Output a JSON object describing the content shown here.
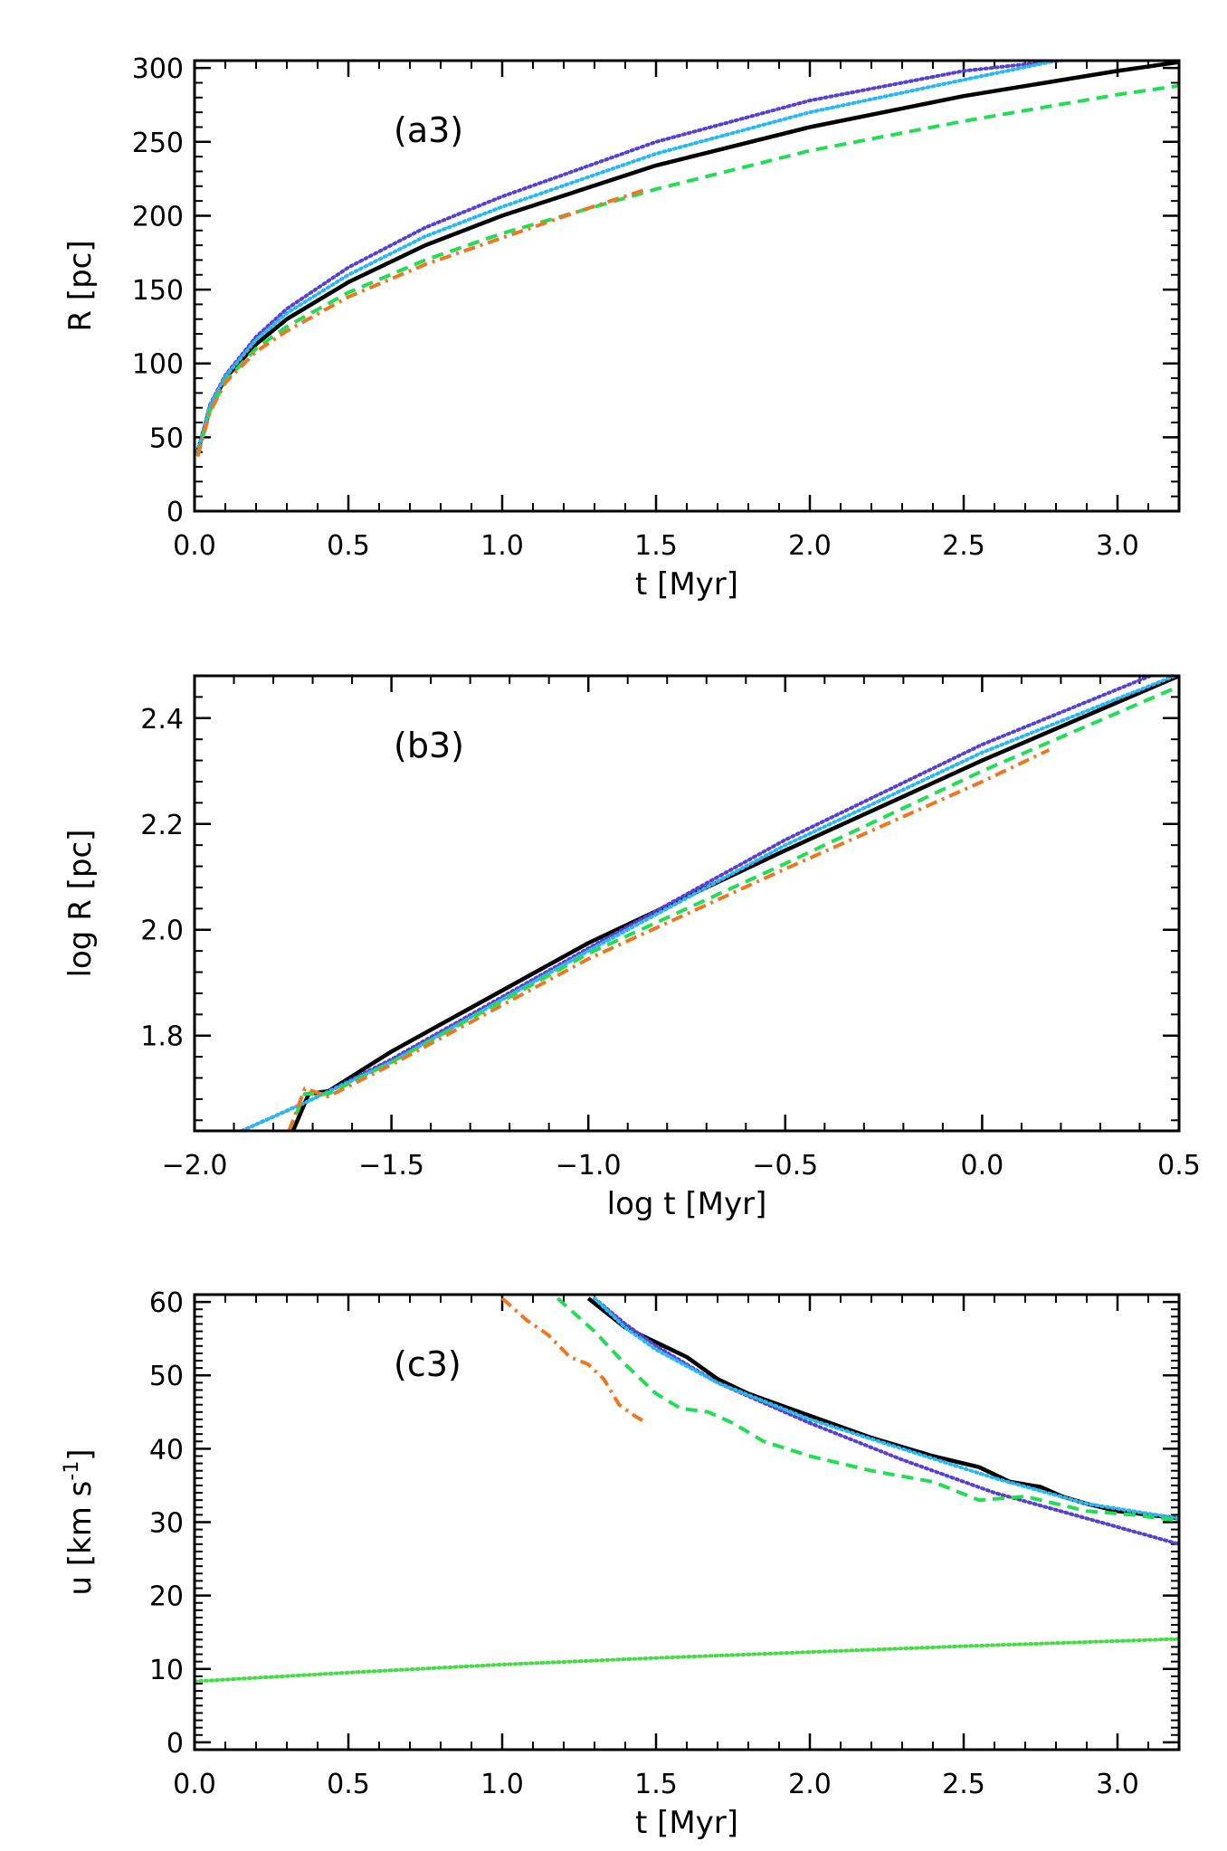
{
  "chart_data": [
    {
      "type": "line",
      "panel_label": "(a3)",
      "xlabel": "t [Myr]",
      "ylabel": "R [pc]",
      "xlim": [
        0,
        3.2
      ],
      "ylim": [
        0,
        305
      ],
      "xticks": [
        0,
        0.5,
        1,
        1.5,
        2,
        2.5,
        3
      ],
      "xtick_labels": [
        "0.0",
        "0.5",
        "1.0",
        "1.5",
        "2.0",
        "2.5",
        "3.0"
      ],
      "yticks": [
        0,
        50,
        100,
        150,
        200,
        250,
        300
      ],
      "ytick_labels": [
        "0",
        "50",
        "100",
        "150",
        "200",
        "250",
        "300"
      ],
      "series": [
        {
          "name": "black-solid",
          "color": "#000000",
          "style": "solid",
          "x": [
            0.01,
            0.05,
            0.1,
            0.2,
            0.3,
            0.5,
            0.75,
            1.0,
            1.5,
            2.0,
            2.5,
            3.0,
            3.2
          ],
          "y": [
            40,
            70,
            90,
            113,
            130,
            155,
            180,
            200,
            234,
            260,
            281,
            298,
            304
          ]
        },
        {
          "name": "purple-dotted",
          "color": "#5a3fd0",
          "style": "dotted",
          "x": [
            0.01,
            0.05,
            0.1,
            0.2,
            0.3,
            0.5,
            0.75,
            1.0,
            1.5,
            2.0,
            2.5,
            2.9
          ],
          "y": [
            40,
            72,
            92,
            118,
            137,
            165,
            192,
            213,
            250,
            278,
            298,
            307
          ]
        },
        {
          "name": "cyan-dotted",
          "color": "#2ab8f0",
          "style": "dotted",
          "x": [
            0.01,
            0.05,
            0.1,
            0.2,
            0.3,
            0.5,
            0.75,
            1.0,
            1.5,
            2.0,
            2.5,
            2.78
          ],
          "y": [
            40,
            71,
            91,
            116,
            134,
            160,
            186,
            206,
            242,
            270,
            292,
            304
          ]
        },
        {
          "name": "green-dashed",
          "color": "#22dd55",
          "style": "dashed",
          "x": [
            0.01,
            0.05,
            0.1,
            0.2,
            0.3,
            0.5,
            0.75,
            1.0,
            1.5,
            2.0,
            2.5,
            3.0,
            3.2
          ],
          "y": [
            38,
            68,
            88,
            110,
            125,
            148,
            170,
            188,
            218,
            244,
            264,
            282,
            288
          ]
        },
        {
          "name": "orange-dashdot",
          "color": "#ee7722",
          "style": "dashdot",
          "x": [
            0.01,
            0.05,
            0.1,
            0.2,
            0.3,
            0.5,
            0.75,
            1.0,
            1.25,
            1.47
          ],
          "y": [
            37,
            67,
            87,
            108,
            122,
            145,
            167,
            185,
            203,
            218
          ]
        }
      ]
    },
    {
      "type": "line",
      "panel_label": "(b3)",
      "xlabel": "log t [Myr]",
      "ylabel": "log R [pc]",
      "xlim": [
        -2.0,
        0.5
      ],
      "ylim": [
        1.62,
        2.48
      ],
      "xticks": [
        -2.0,
        -1.5,
        -1.0,
        -0.5,
        0.0,
        0.5
      ],
      "xtick_labels": [
        "−2.0",
        "−1.5",
        "−1.0",
        "−0.5",
        "0.0",
        "0.5"
      ],
      "yticks": [
        1.8,
        2.0,
        2.2,
        2.4
      ],
      "ytick_labels": [
        "1.8",
        "2.0",
        "2.2",
        "2.4"
      ],
      "series": [
        {
          "name": "black-solid",
          "color": "#000000",
          "style": "solid",
          "x": [
            -1.75,
            -1.71,
            -1.66,
            -1.5,
            -1.0,
            -0.5,
            0.0,
            0.5
          ],
          "y": [
            1.62,
            1.69,
            1.695,
            1.77,
            1.975,
            2.15,
            2.32,
            2.48
          ]
        },
        {
          "name": "purple-dotted",
          "color": "#5a3fd0",
          "style": "dotted",
          "x": [
            -1.88,
            -1.7,
            -1.5,
            -1.0,
            -0.5,
            0.0,
            0.46
          ],
          "y": [
            1.62,
            1.68,
            1.755,
            1.965,
            2.17,
            2.35,
            2.49
          ]
        },
        {
          "name": "cyan-dotted",
          "color": "#2ab8f0",
          "style": "dotted",
          "x": [
            -1.88,
            -1.7,
            -1.5,
            -1.0,
            -0.5,
            0.0,
            0.49
          ],
          "y": [
            1.62,
            1.68,
            1.75,
            1.96,
            2.16,
            2.335,
            2.48
          ]
        },
        {
          "name": "green-dashed",
          "color": "#22dd55",
          "style": "dashed",
          "x": [
            -1.76,
            -1.72,
            -1.66,
            -1.5,
            -1.0,
            -0.5,
            0.0,
            0.5
          ],
          "y": [
            1.62,
            1.69,
            1.69,
            1.75,
            1.955,
            2.125,
            2.3,
            2.46
          ]
        },
        {
          "name": "orange-dashdot",
          "color": "#ee7722",
          "style": "dashdot",
          "x": [
            -1.76,
            -1.72,
            -1.66,
            -1.5,
            -1.0,
            -0.5,
            0.0,
            0.17
          ],
          "y": [
            1.62,
            1.7,
            1.685,
            1.745,
            1.945,
            2.115,
            2.28,
            2.34
          ]
        }
      ]
    },
    {
      "type": "line",
      "panel_label": "(c3)",
      "xlabel": "t [Myr]",
      "ylabel_main": "u [km s",
      "ylabel_sup": "-1",
      "ylabel_end": "]",
      "xlim": [
        0,
        3.2
      ],
      "ylim": [
        -1,
        61
      ],
      "xticks": [
        0,
        0.5,
        1,
        1.5,
        2,
        2.5,
        3
      ],
      "xtick_labels": [
        "0.0",
        "0.5",
        "1.0",
        "1.5",
        "2.0",
        "2.5",
        "3.0"
      ],
      "yticks": [
        0,
        10,
        20,
        30,
        40,
        50,
        60
      ],
      "ytick_labels": [
        "0",
        "10",
        "20",
        "30",
        "40",
        "50",
        "60"
      ],
      "series": [
        {
          "name": "black-solid",
          "color": "#000000",
          "style": "solid",
          "x": [
            1.28,
            1.4,
            1.5,
            1.6,
            1.7,
            1.8,
            2.0,
            2.2,
            2.4,
            2.55,
            2.65,
            2.75,
            2.82,
            2.9,
            3.0,
            3.2
          ],
          "y": [
            60.5,
            56.5,
            54.5,
            52.5,
            49.5,
            47.5,
            44.5,
            41.5,
            39,
            37.5,
            35.5,
            34.8,
            33.5,
            32.5,
            31.5,
            30.5
          ]
        },
        {
          "name": "purple-dotted",
          "color": "#5a3fd0",
          "style": "dotted",
          "x": [
            1.3,
            1.4,
            1.5,
            1.7,
            2.0,
            2.3,
            2.6,
            2.9,
            3.2
          ],
          "y": [
            60.5,
            57,
            54,
            49,
            43.5,
            38.5,
            34,
            30.5,
            27
          ]
        },
        {
          "name": "cyan-dotted",
          "color": "#2ab8f0",
          "style": "dotted",
          "x": [
            1.3,
            1.4,
            1.5,
            1.7,
            2.0,
            2.3,
            2.6,
            2.9,
            3.2
          ],
          "y": [
            60.5,
            56.5,
            53.5,
            49,
            44,
            40,
            36,
            32.5,
            30.5
          ]
        },
        {
          "name": "green-dashed",
          "color": "#22dd55",
          "style": "dashed",
          "x": [
            1.18,
            1.3,
            1.4,
            1.5,
            1.58,
            1.67,
            1.75,
            1.85,
            2.0,
            2.2,
            2.4,
            2.55,
            2.7,
            2.8,
            2.9,
            3.05,
            3.2
          ],
          "y": [
            60.5,
            56,
            51.5,
            47.5,
            45.5,
            45,
            43.5,
            41,
            39,
            37,
            35.5,
            33,
            33.5,
            32.5,
            31.5,
            31,
            30.2
          ]
        },
        {
          "name": "orange-dashdot",
          "color": "#ee7722",
          "style": "dashdot",
          "x": [
            1.0,
            1.08,
            1.15,
            1.22,
            1.28,
            1.33,
            1.38,
            1.43,
            1.47
          ],
          "y": [
            60.5,
            57.5,
            55.5,
            52.5,
            51.5,
            49.5,
            46,
            44.5,
            43.5
          ]
        },
        {
          "name": "lightgreen-dotted",
          "color": "#44dd44",
          "style": "dotted",
          "x": [
            0.0,
            0.5,
            1.0,
            1.5,
            2.0,
            2.5,
            3.0,
            3.2
          ],
          "y": [
            8.3,
            9.5,
            10.6,
            11.5,
            12.3,
            13.1,
            13.8,
            14.1
          ]
        }
      ]
    }
  ]
}
